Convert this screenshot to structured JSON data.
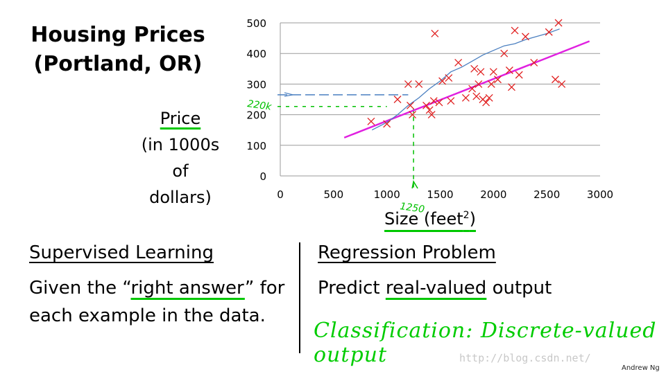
{
  "title_line1": "Housing Prices",
  "title_line2": "(Portland, OR)",
  "ylabel": {
    "line1": "Price",
    "line2": "(in 1000s",
    "line3": "of dollars)"
  },
  "xlabel": {
    "text": "Size (feet",
    "sup": "2",
    "close": ")"
  },
  "annotations": {
    "y_marker": "220k",
    "x_marker": "1250"
  },
  "left_panel": {
    "heading": "Supervised Learning",
    "text_before": "Given the “",
    "text_underlined": "right answer",
    "text_after": "” for",
    "text_line2": "each example in the data."
  },
  "right_panel": {
    "heading": "Regression Problem",
    "text_before": "Predict ",
    "text_underlined": "real-valued",
    "text_after": " output",
    "handwritten": "Classification: Discrete-valued output"
  },
  "watermark": "http://blog.csdn.net/",
  "signature": "Andrew Ng",
  "colors": {
    "points": "#e02020",
    "linear_fit": "#e020e0",
    "curve_fit": "#4a7fc0",
    "annotation": "#00c000",
    "grid": "#9a9a9a"
  },
  "chart_data": {
    "type": "scatter",
    "x_ticks": [
      0,
      500,
      1000,
      1500,
      2000,
      2500,
      3000
    ],
    "y_ticks": [
      0,
      100,
      200,
      300,
      400,
      500
    ],
    "xlim": [
      0,
      3000
    ],
    "ylim": [
      0,
      500
    ],
    "grid": "horizontal",
    "points": [
      [
        852,
        178
      ],
      [
        1000,
        170
      ],
      [
        1100,
        250
      ],
      [
        1200,
        300
      ],
      [
        1220,
        230
      ],
      [
        1240,
        200
      ],
      [
        1300,
        300
      ],
      [
        1370,
        230
      ],
      [
        1400,
        215
      ],
      [
        1420,
        200
      ],
      [
        1440,
        245
      ],
      [
        1450,
        465
      ],
      [
        1490,
        240
      ],
      [
        1520,
        310
      ],
      [
        1580,
        320
      ],
      [
        1600,
        245
      ],
      [
        1670,
        370
      ],
      [
        1740,
        255
      ],
      [
        1800,
        285
      ],
      [
        1820,
        350
      ],
      [
        1840,
        260
      ],
      [
        1860,
        300
      ],
      [
        1880,
        340
      ],
      [
        1900,
        250
      ],
      [
        1930,
        240
      ],
      [
        1960,
        255
      ],
      [
        1980,
        300
      ],
      [
        2000,
        340
      ],
      [
        2040,
        315
      ],
      [
        2100,
        400
      ],
      [
        2150,
        345
      ],
      [
        2170,
        290
      ],
      [
        2200,
        475
      ],
      [
        2240,
        330
      ],
      [
        2300,
        455
      ],
      [
        2380,
        370
      ],
      [
        2520,
        470
      ],
      [
        2580,
        315
      ],
      [
        2610,
        500
      ],
      [
        2640,
        300
      ]
    ],
    "fit_line": {
      "x": [
        600,
        2900
      ],
      "y": [
        125,
        440
      ]
    },
    "fit_curve": {
      "x": [
        860,
        1000,
        1100,
        1200,
        1300,
        1400,
        1500,
        1600,
        1700,
        1800,
        1900,
        2000,
        2100,
        2200,
        2300,
        2400,
        2500,
        2620
      ],
      "y": [
        150,
        175,
        200,
        230,
        255,
        285,
        310,
        340,
        355,
        375,
        395,
        410,
        425,
        432,
        445,
        455,
        465,
        480
      ]
    },
    "marker": {
      "x": 1250,
      "y": 220
    }
  }
}
